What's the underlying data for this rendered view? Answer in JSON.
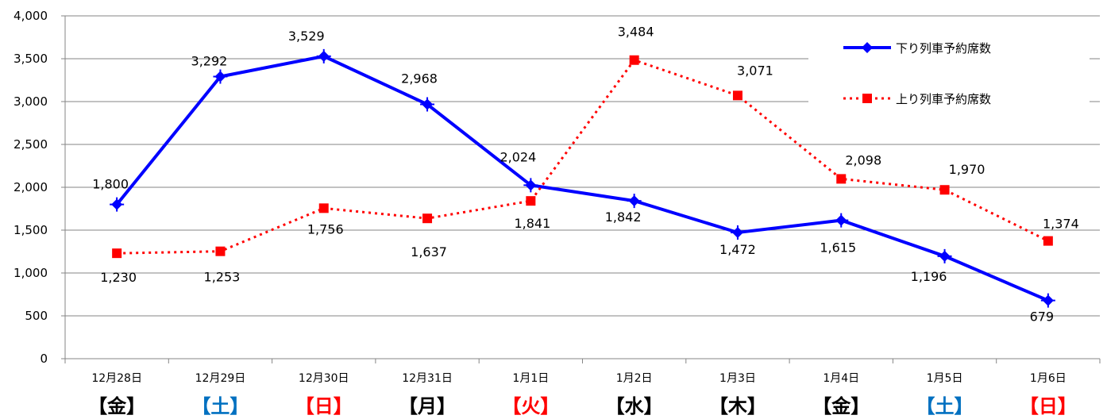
{
  "chart_data": {
    "type": "line",
    "categories": [
      "12月28日",
      "12月29日",
      "12月30日",
      "12月31日",
      "1月1日",
      "1月2日",
      "1月3日",
      "1月4日",
      "1月5日",
      "1月6日"
    ],
    "weekdays": [
      {
        "label": "【金】",
        "color": "#000000"
      },
      {
        "label": "【土】",
        "color": "#0070c0"
      },
      {
        "label": "【日】",
        "color": "#ff0000"
      },
      {
        "label": "【月】",
        "color": "#000000"
      },
      {
        "label": "【火】",
        "color": "#ff0000"
      },
      {
        "label": "【水】",
        "color": "#000000"
      },
      {
        "label": "【木】",
        "color": "#000000"
      },
      {
        "label": "【金】",
        "color": "#000000"
      },
      {
        "label": "【土】",
        "color": "#0070c0"
      },
      {
        "label": "【日】",
        "color": "#ff0000"
      }
    ],
    "series": [
      {
        "name": "下り列車予約席数",
        "values": [
          1800,
          3292,
          3529,
          2968,
          2024,
          1842,
          1472,
          1615,
          1196,
          679
        ],
        "labels": [
          "1,800",
          "3,292",
          "3,529",
          "2,968",
          "2,024",
          "1,842",
          "1,472",
          "1,615",
          "1,196",
          "679"
        ],
        "color": "#0000ff",
        "line_style": "solid",
        "marker": "diamond-cross"
      },
      {
        "name": "上り列車予約席数",
        "values": [
          1230,
          1253,
          1756,
          1637,
          1841,
          3484,
          3071,
          2098,
          1970,
          1374
        ],
        "labels": [
          "1,230",
          "1,253",
          "1,756",
          "1,637",
          "1,841",
          "3,484",
          "3,071",
          "2,098",
          "1,970",
          "1,374"
        ],
        "color": "#ff0000",
        "line_style": "dotted",
        "marker": "square"
      }
    ],
    "yticks": [
      "0",
      "500",
      "1,000",
      "1,500",
      "2,000",
      "2,500",
      "3,000",
      "3,500",
      "4,000"
    ],
    "ylim": [
      0,
      4000
    ],
    "grid": true,
    "legend_position": "top-right"
  }
}
